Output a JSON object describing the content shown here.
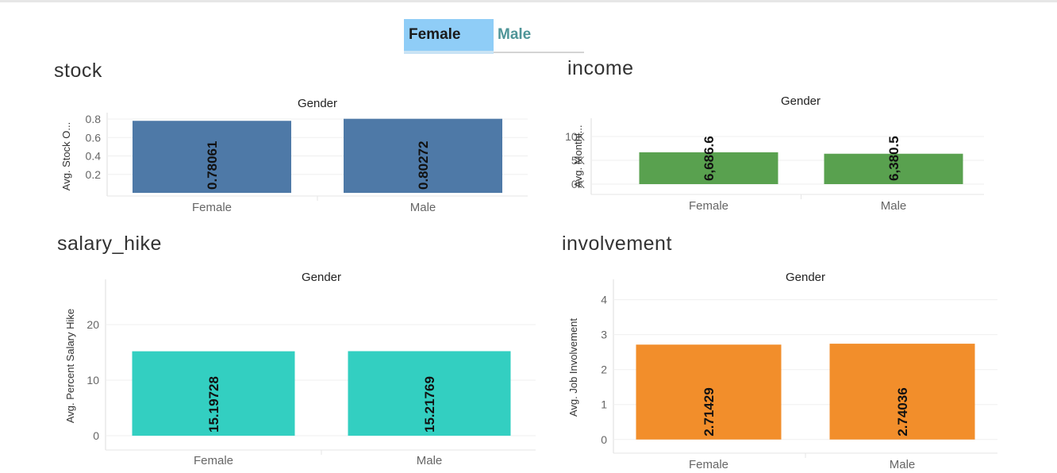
{
  "filter": {
    "options": [
      "Female",
      "Male"
    ],
    "selected": "Female"
  },
  "colors": {
    "stock": "#4e79a7",
    "income": "#59a14f",
    "salary_hike": "#33cfc1",
    "involvement": "#f28e2b",
    "filter_selected_bg": "#8fcdf7",
    "filter_unselected_text": "#4f9598"
  },
  "chart_data": [
    {
      "id": "stock",
      "panel_title": "stock",
      "type": "bar",
      "title": "Gender",
      "ylabel": "Avg. Stock O...",
      "categories": [
        "Female",
        "Male"
      ],
      "values": [
        0.78061,
        0.80272
      ],
      "data_labels": [
        "0.78061",
        "0.80272"
      ],
      "yticks": [
        0.2,
        0.4,
        0.6,
        0.8
      ],
      "ytick_labels": [
        "0.2",
        "0.4",
        "0.6",
        "0.8"
      ],
      "ylim": [
        0,
        0.8
      ],
      "grid": true
    },
    {
      "id": "income",
      "panel_title": "income",
      "type": "bar",
      "title": "Gender",
      "ylabel": "Avg. Monthl...",
      "categories": [
        "Female",
        "Male"
      ],
      "values": [
        6686.6,
        6380.5
      ],
      "data_labels": [
        "6,686.6",
        "6,380.5"
      ],
      "yticks": [
        0,
        5000,
        10000
      ],
      "ytick_labels": [
        "0K",
        "5K",
        "10K"
      ],
      "ylim": [
        -1500,
        12500
      ],
      "grid": true
    },
    {
      "id": "salary_hike",
      "panel_title": "salary_hike",
      "type": "bar",
      "title": "Gender",
      "ylabel": "Avg. Percent Salary Hike",
      "categories": [
        "Female",
        "Male"
      ],
      "values": [
        15.19728,
        15.21769
      ],
      "data_labels": [
        "15.19728",
        "15.21769"
      ],
      "yticks": [
        0,
        10,
        20
      ],
      "ytick_labels": [
        "0",
        "10",
        "20"
      ],
      "ylim": [
        -2,
        27
      ],
      "grid": true
    },
    {
      "id": "involvement",
      "panel_title": "involvement",
      "type": "bar",
      "title": "Gender",
      "ylabel": "Avg. Job Involvement",
      "categories": [
        "Female",
        "Male"
      ],
      "values": [
        2.71429,
        2.74036
      ],
      "data_labels": [
        "2.71429",
        "2.74036"
      ],
      "yticks": [
        0,
        1,
        2,
        3,
        4
      ],
      "ytick_labels": [
        "0",
        "1",
        "2",
        "3",
        "4"
      ],
      "ylim": [
        -0.3,
        4.4
      ],
      "grid": true
    }
  ]
}
